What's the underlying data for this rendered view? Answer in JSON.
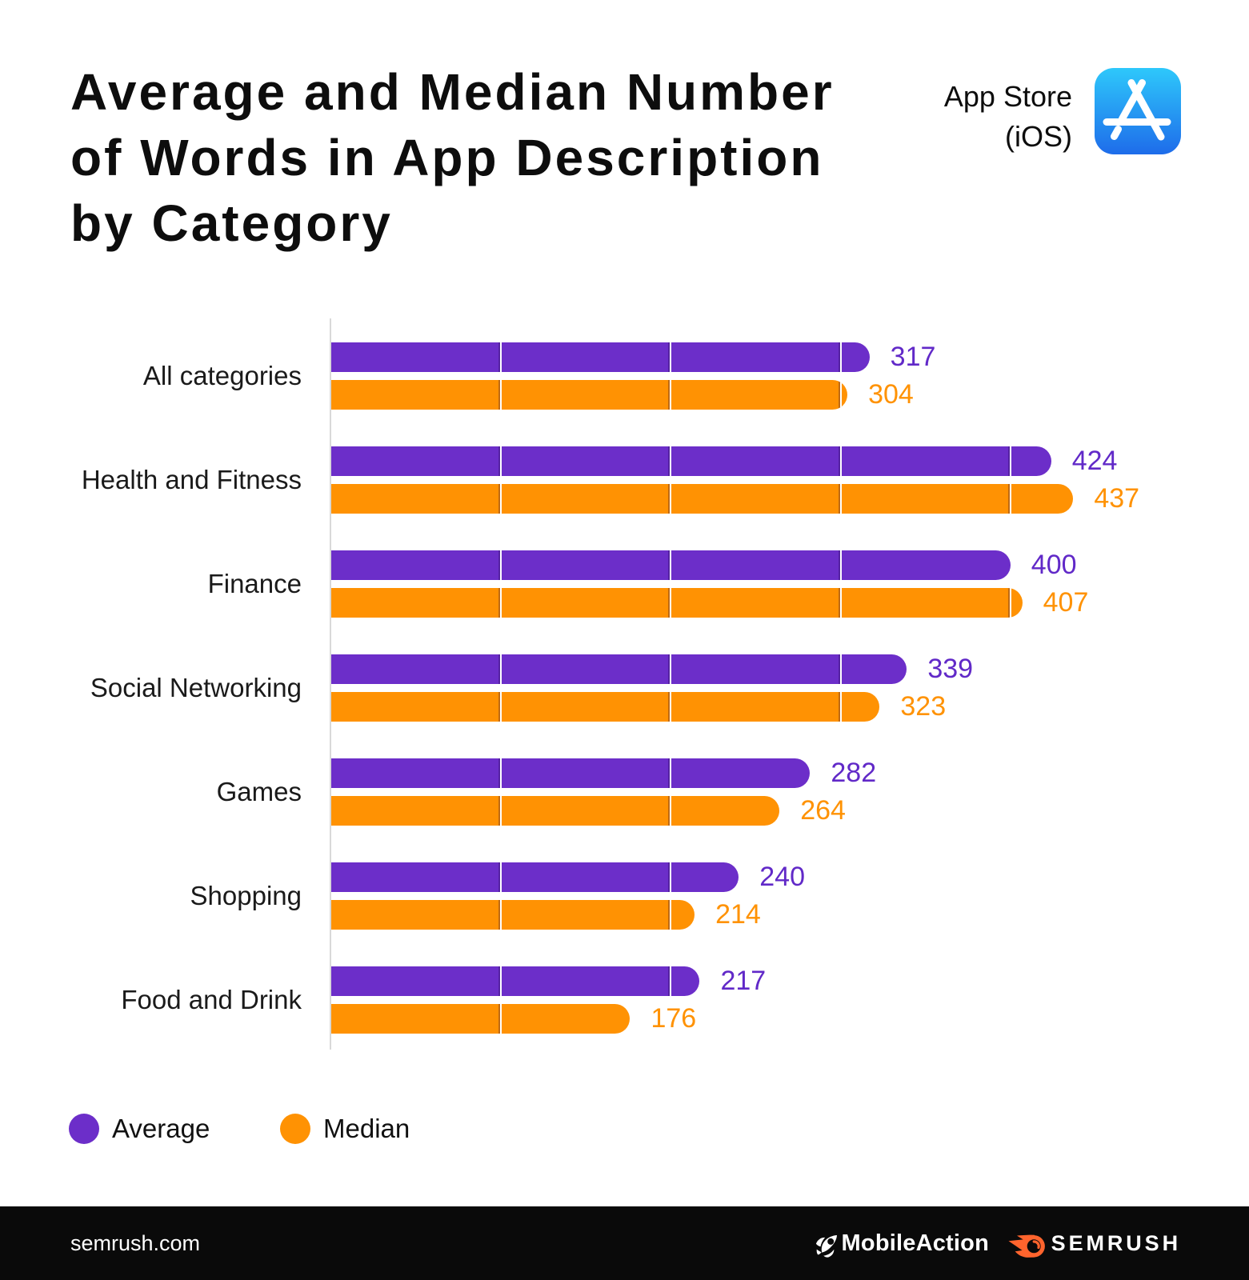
{
  "title": {
    "text": "Average and Median Number of Words in App Description by Category",
    "lines": [
      "Average and Median Number",
      "of Words in App Description",
      "by Category"
    ]
  },
  "platform": {
    "name_line1": "App Store",
    "name_line2": "(iOS)",
    "icon": "app-store-icon",
    "icon_gradient_top": "#2ec8fb",
    "icon_gradient_bottom": "#1e6cea"
  },
  "chart_data": {
    "type": "bar",
    "orientation": "horizontal",
    "title": "Average and Median Number of Words in App Description by Category",
    "categories": [
      "All categories",
      "Health and Fitness",
      "Finance",
      "Social Networking",
      "Games",
      "Shopping",
      "Food and Drink"
    ],
    "series": [
      {
        "name": "Average",
        "color": "#6c2ec9",
        "label_color": "#6129c8",
        "values": [
          317,
          424,
          400,
          339,
          282,
          240,
          217
        ]
      },
      {
        "name": "Median",
        "color": "#ff9203",
        "label_color": "#ff9203",
        "values": [
          304,
          437,
          407,
          323,
          264,
          214,
          176
        ]
      }
    ],
    "x_axis": {
      "min": 0,
      "max": 460,
      "gridlines": [
        100,
        200,
        300,
        400
      ],
      "tick_labels_visible": false
    },
    "value_labels": true,
    "grid": "vertical-white-ticks-over-bars",
    "legend_position": "bottom-left"
  },
  "legend": {
    "items": [
      {
        "label": "Average",
        "color": "#6c2ec9"
      },
      {
        "label": "Median",
        "color": "#ff9203"
      }
    ]
  },
  "footer": {
    "website": "semrush.com",
    "background": "#0a0a0a",
    "logos": [
      {
        "name": "MobileAction",
        "icon": "rocket-icon"
      },
      {
        "name": "SEMRUSH",
        "icon": "semrush-flame-icon",
        "icon_color": "#ff642d"
      }
    ]
  }
}
